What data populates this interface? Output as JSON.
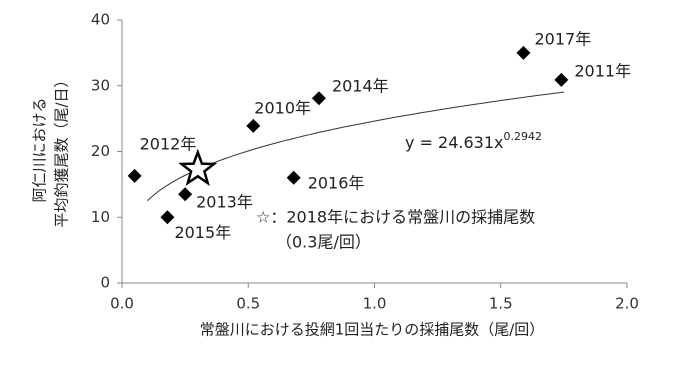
{
  "chart_data": {
    "type": "scatter",
    "x_label": "常盤川における投網1回当たりの採捕尾数（尾/回）",
    "y_label": [
      "阿仁川における",
      "平均釣獲尾数（尾/日）"
    ],
    "xlim": [
      0,
      2
    ],
    "ylim": [
      0,
      40
    ],
    "xticks": [
      {
        "value": 0,
        "label": "0.0"
      },
      {
        "value": 0.5,
        "label": "0.5"
      },
      {
        "value": 1,
        "label": "1.0"
      },
      {
        "value": 1.5,
        "label": "1.5"
      },
      {
        "value": 2,
        "label": "2.0"
      }
    ],
    "yticks": [
      0,
      10,
      20,
      30,
      40
    ],
    "grid": false,
    "series": [
      {
        "color": "#000000",
        "x": [
          0.05,
          0.25,
          0.18,
          0.52,
          0.78,
          0.68,
          1.59,
          1.74
        ],
        "values": [
          16.3,
          13.5,
          10,
          23.9,
          28.1,
          16,
          35,
          30.9
        ],
        "labels": [
          "2012年",
          "2013年",
          "2015年",
          "2010年",
          "2014年",
          "2016年",
          "2017年",
          "2011年"
        ]
      }
    ],
    "trendline": {
      "coefficient": 24.631,
      "exponent": 0.2942,
      "label": "y = 24.631x",
      "xrange": [
        0.1,
        1.75
      ]
    },
    "star": {
      "x": 0.3,
      "y": 17.3,
      "label": "☆：2018年における常盤川の採捕尾数",
      "note": "（0.3尾/回）"
    }
  }
}
